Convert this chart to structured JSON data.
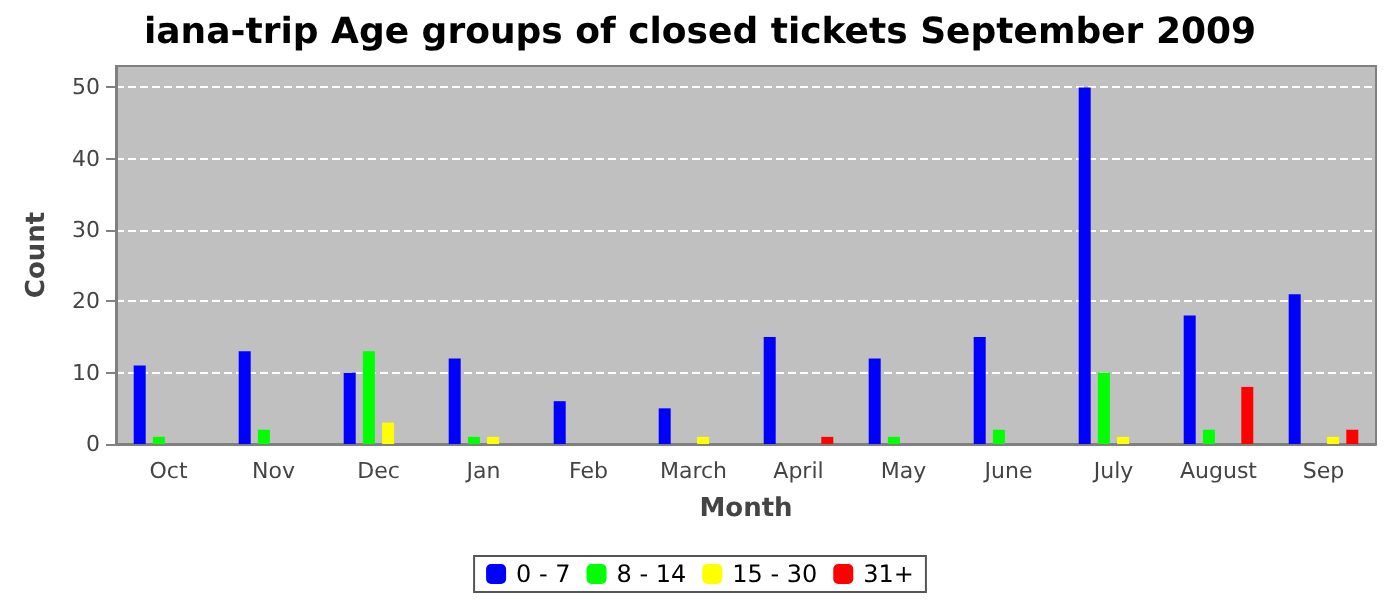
{
  "chart_data": {
    "type": "bar",
    "title": "iana-trip Age groups of closed tickets September 2009",
    "xlabel": "Month",
    "ylabel": "Count",
    "categories": [
      "Oct",
      "Nov",
      "Dec",
      "Jan",
      "Feb",
      "March",
      "April",
      "May",
      "June",
      "July",
      "August",
      "Sep"
    ],
    "series": [
      {
        "name": "0 - 7",
        "color": "#0000ff",
        "values": [
          11,
          13,
          10,
          12,
          6,
          5,
          15,
          12,
          15,
          50,
          18,
          21
        ]
      },
      {
        "name": "8 - 14",
        "color": "#00ff00",
        "values": [
          1,
          2,
          13,
          1,
          0,
          0,
          0,
          1,
          2,
          10,
          2,
          0
        ]
      },
      {
        "name": "15 - 30",
        "color": "#ffff00",
        "values": [
          0,
          0,
          3,
          1,
          0,
          1,
          0,
          0,
          0,
          1,
          0,
          1
        ]
      },
      {
        "name": "31+",
        "color": "#ff0000",
        "values": [
          0,
          0,
          0,
          0,
          0,
          0,
          1,
          0,
          0,
          0,
          8,
          2
        ]
      }
    ],
    "ylim": [
      0,
      53
    ],
    "yticks": [
      0,
      10,
      20,
      30,
      40,
      50
    ],
    "grid": "y",
    "legend": "bottom"
  }
}
